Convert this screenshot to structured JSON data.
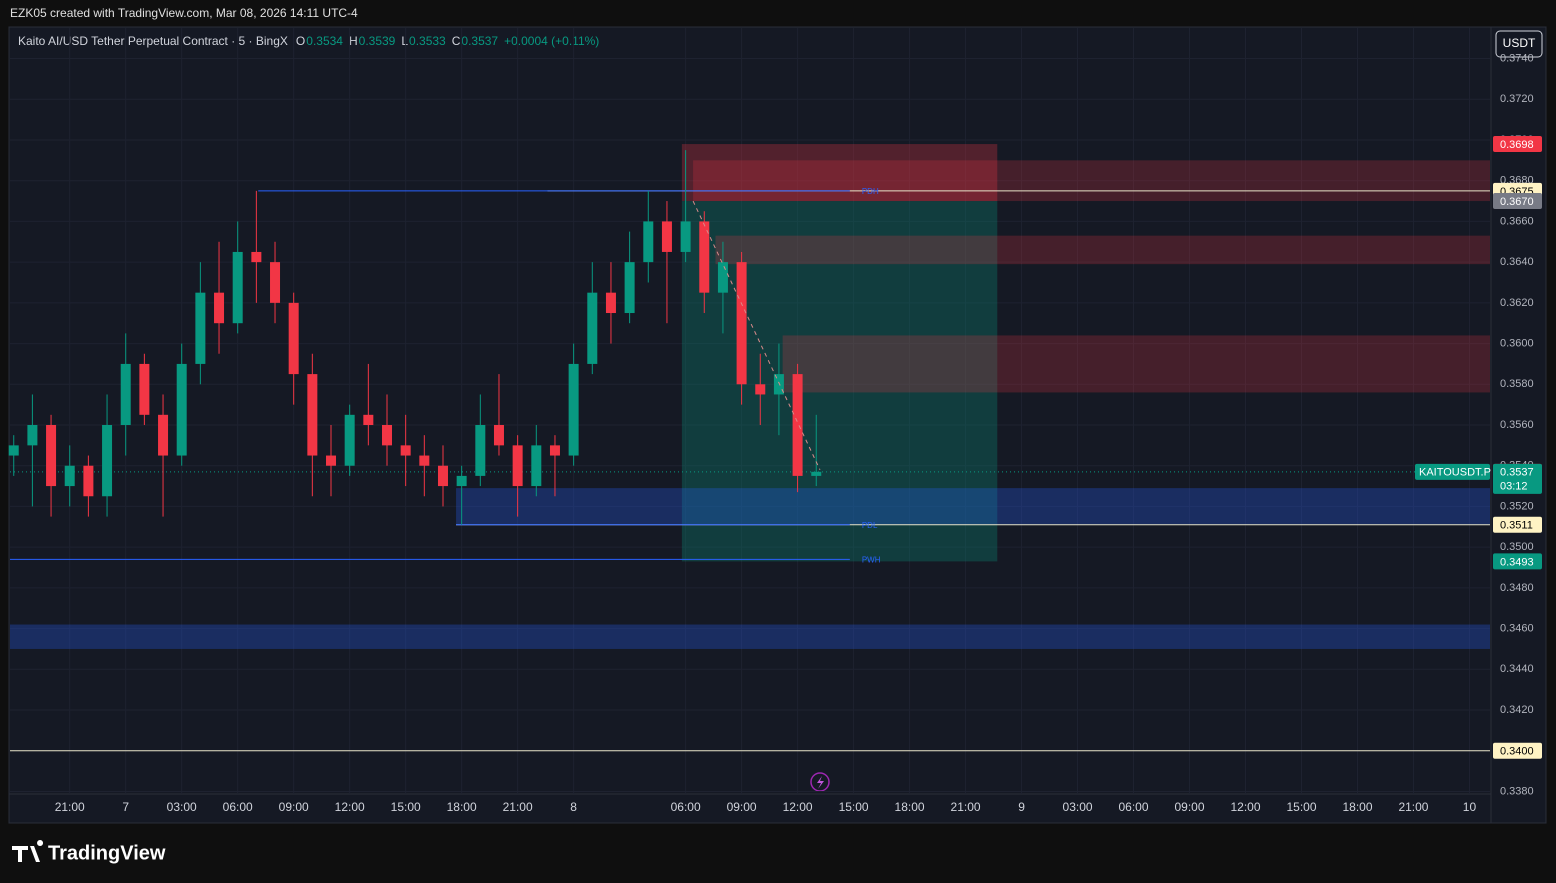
{
  "header": {
    "attribution": "EZK05 created with TradingView.com, Mar 08, 2026 14:11 UTC-4",
    "currency": "USDT",
    "brand": "TradingView"
  },
  "chart_data": {
    "type": "candlestick",
    "title": "Kaito AI/USD Tether Perpetual Contract · 5 · BingX",
    "legend": [
      "O",
      "0.3534",
      "H",
      "0.3539",
      "L",
      "0.3533",
      "C",
      "0.3537",
      "+0.0004 (+0.11%)"
    ],
    "up_color": "#089981",
    "down_color": "#f23645",
    "x": [
      -6,
      -5,
      -4,
      -3,
      -2,
      -1,
      0,
      1,
      2,
      3,
      4,
      5,
      6,
      7,
      8,
      9,
      10,
      11,
      12,
      13,
      14,
      15,
      16,
      17,
      18,
      19,
      20,
      21,
      22,
      23,
      24,
      25,
      26,
      27,
      28,
      29,
      30,
      31,
      32,
      33,
      34,
      35,
      36,
      37
    ],
    "open": [
      0.3545,
      0.355,
      0.356,
      0.353,
      0.354,
      0.3525,
      0.356,
      0.359,
      0.3565,
      0.3545,
      0.359,
      0.3625,
      0.361,
      0.3645,
      0.364,
      0.362,
      0.3585,
      0.3545,
      0.354,
      0.3565,
      0.356,
      0.355,
      0.3545,
      0.354,
      0.353,
      0.3535,
      0.356,
      0.355,
      0.353,
      0.355,
      0.3545,
      0.359,
      0.3625,
      0.3615,
      0.364,
      0.366,
      0.3645,
      0.366,
      0.3625,
      0.364,
      0.358,
      0.3575,
      0.3585,
      0.3535
    ],
    "high": [
      0.3555,
      0.3575,
      0.3565,
      0.355,
      0.3545,
      0.3575,
      0.3605,
      0.3595,
      0.3575,
      0.36,
      0.364,
      0.365,
      0.366,
      0.3675,
      0.365,
      0.3625,
      0.3595,
      0.356,
      0.357,
      0.359,
      0.3575,
      0.3565,
      0.3555,
      0.355,
      0.354,
      0.3575,
      0.3585,
      0.3555,
      0.356,
      0.3555,
      0.36,
      0.364,
      0.364,
      0.3655,
      0.3675,
      0.367,
      0.3695,
      0.3665,
      0.365,
      0.3645,
      0.3595,
      0.36,
      0.359,
      0.3565
    ],
    "low": [
      0.3535,
      0.352,
      0.3515,
      0.352,
      0.3515,
      0.3515,
      0.3545,
      0.356,
      0.3515,
      0.354,
      0.358,
      0.3595,
      0.3605,
      0.362,
      0.361,
      0.357,
      0.3525,
      0.3525,
      0.3535,
      0.355,
      0.354,
      0.353,
      0.3525,
      0.352,
      0.3511,
      0.353,
      0.3545,
      0.3515,
      0.3525,
      0.3525,
      0.354,
      0.3585,
      0.36,
      0.361,
      0.363,
      0.361,
      0.364,
      0.3615,
      0.3605,
      0.357,
      0.356,
      0.3555,
      0.3527,
      0.353
    ],
    "close": [
      0.355,
      0.356,
      0.353,
      0.354,
      0.3525,
      0.356,
      0.359,
      0.3565,
      0.3545,
      0.359,
      0.3625,
      0.361,
      0.3645,
      0.364,
      0.362,
      0.3585,
      0.3545,
      0.354,
      0.3565,
      0.356,
      0.355,
      0.3545,
      0.354,
      0.353,
      0.3535,
      0.356,
      0.355,
      0.353,
      0.355,
      0.3545,
      0.359,
      0.3625,
      0.3615,
      0.364,
      0.366,
      0.3645,
      0.366,
      0.3625,
      0.364,
      0.358,
      0.3575,
      0.3585,
      0.3535,
      0.3537
    ],
    "xlim": [
      -6.2,
      73.1
    ],
    "ylim": [
      0.3365,
      0.3755
    ],
    "xticks": [
      {
        "value": -3,
        "label": "21:00"
      },
      {
        "value": 0,
        "label": "7"
      },
      {
        "value": 3,
        "label": "03:00"
      },
      {
        "value": 6,
        "label": "06:00"
      },
      {
        "value": 9,
        "label": "09:00"
      },
      {
        "value": 12,
        "label": "12:00"
      },
      {
        "value": 15,
        "label": "15:00"
      },
      {
        "value": 18,
        "label": "18:00"
      },
      {
        "value": 21,
        "label": "21:00"
      },
      {
        "value": 24,
        "label": "8"
      },
      {
        "value": 30,
        "label": "06:00"
      },
      {
        "value": 33,
        "label": "09:00"
      },
      {
        "value": 36,
        "label": "12:00"
      },
      {
        "value": 39,
        "label": "15:00"
      },
      {
        "value": 42,
        "label": "18:00"
      },
      {
        "value": 45,
        "label": "21:00"
      },
      {
        "value": 48,
        "label": "9"
      },
      {
        "value": 51,
        "label": "03:00"
      },
      {
        "value": 54,
        "label": "06:00"
      },
      {
        "value": 57,
        "label": "09:00"
      },
      {
        "value": 60,
        "label": "12:00"
      },
      {
        "value": 63,
        "label": "15:00"
      },
      {
        "value": 66,
        "label": "18:00"
      },
      {
        "value": 69,
        "label": "21:00"
      },
      {
        "value": 72,
        "label": "10"
      }
    ],
    "yticks": [
      {
        "value": 0.338,
        "label": "0.3380"
      },
      {
        "value": 0.34,
        "label": "0.3400"
      },
      {
        "value": 0.342,
        "label": "0.3420"
      },
      {
        "value": 0.344,
        "label": "0.3440"
      },
      {
        "value": 0.346,
        "label": "0.3460"
      },
      {
        "value": 0.348,
        "label": "0.3480"
      },
      {
        "value": 0.35,
        "label": "0.3500"
      },
      {
        "value": 0.352,
        "label": "0.3520"
      },
      {
        "value": 0.354,
        "label": "0.3540"
      },
      {
        "value": 0.356,
        "label": "0.3560"
      },
      {
        "value": 0.358,
        "label": "0.3580"
      },
      {
        "value": 0.36,
        "label": "0.3600"
      },
      {
        "value": 0.362,
        "label": "0.3620"
      },
      {
        "value": 0.364,
        "label": "0.3640"
      },
      {
        "value": 0.366,
        "label": "0.3660"
      },
      {
        "value": 0.368,
        "label": "0.3680"
      },
      {
        "value": 0.37,
        "label": "0.3700"
      },
      {
        "value": 0.372,
        "label": "0.3720"
      },
      {
        "value": 0.374,
        "label": "0.3740"
      }
    ],
    "zones": [
      {
        "x": [
          29.8,
          46.7
        ],
        "y": [
          0.367,
          0.3698
        ],
        "color": "rgba(242,54,69,0.28)"
      },
      {
        "x": [
          29.8,
          46.7
        ],
        "y": [
          0.3493,
          0.367
        ],
        "color": "rgba(8,153,129,0.28)"
      },
      {
        "x": [
          30.4,
          73.1
        ],
        "y": [
          0.367,
          0.369
        ],
        "color": "rgba(242,54,69,0.22)"
      },
      {
        "x": [
          31.6,
          73.1
        ],
        "y": [
          0.3639,
          0.3653
        ],
        "color": "rgba(242,54,69,0.22)"
      },
      {
        "x": [
          35.2,
          73.1
        ],
        "y": [
          0.3576,
          0.3604
        ],
        "color": "rgba(242,54,69,0.22)"
      },
      {
        "x": [
          17.7,
          73.1
        ],
        "y": [
          0.3511,
          0.3529
        ],
        "color": "rgba(41,98,255,0.28)"
      },
      {
        "x": [
          -6.2,
          73.1
        ],
        "y": [
          0.345,
          0.3462
        ],
        "color": "rgba(41,98,255,0.28)"
      }
    ],
    "levels": [
      {
        "name": "PDH",
        "value": 0.3675,
        "x": [
          7.1,
          38.8
        ],
        "color": "#2962ff"
      },
      {
        "name": "PDL",
        "value": 0.3511,
        "x": [
          17.7,
          38.8
        ],
        "color": "#2962ff"
      },
      {
        "name": "PWH",
        "value": 0.3494,
        "x": [
          -6.2,
          38.8
        ],
        "color": "#2962ff"
      }
    ],
    "hlines": [
      {
        "value": 0.3675,
        "x": [
          22.6,
          73.1
        ],
        "color": "#e8e4c8"
      },
      {
        "value": 0.3511,
        "x": [
          17.7,
          73.1
        ],
        "color": "#e8e4c8"
      },
      {
        "value": 0.34,
        "x": [
          -6.2,
          73.1
        ],
        "color": "#e8e4c8"
      }
    ],
    "trendline": {
      "x": [
        30.4,
        37.2
      ],
      "y": [
        0.367,
        0.3538
      ],
      "color": "#d98a8a"
    },
    "price_labels": [
      {
        "value": 0.3698,
        "label": "0.3698",
        "color": "#f23645",
        "text": "#ffffff"
      },
      {
        "value": 0.3675,
        "label": "0.3675",
        "color": "#fff3c4",
        "text": "#000000"
      },
      {
        "value": 0.367,
        "label": "0.3670",
        "color": "#787b86",
        "text": "#ffffff"
      },
      {
        "value": 0.3537,
        "label": "0.3537",
        "color": "#f23645",
        "text": "#ffffff"
      },
      {
        "value": 0.3511,
        "label": "0.3511",
        "color": "#fff3c4",
        "text": "#000000"
      },
      {
        "value": 0.3493,
        "label": "0.3493",
        "color": "#089981",
        "text": "#ffffff"
      },
      {
        "value": 0.34,
        "label": "0.3400",
        "color": "#fff3c4",
        "text": "#000000"
      }
    ],
    "last_price": {
      "symbol": "KAITOUSDT.P",
      "value": 0.3537,
      "label": "0.3537",
      "countdown": "03:12",
      "color": "#089981"
    }
  }
}
